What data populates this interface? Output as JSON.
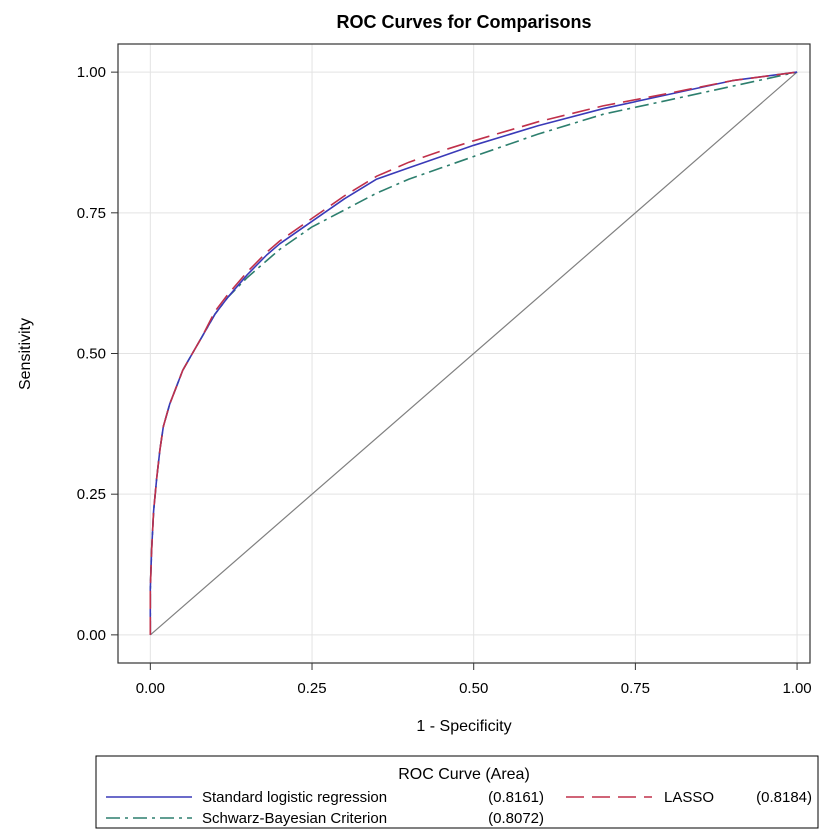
{
  "chart_data": {
    "type": "line",
    "title": "ROC Curves for Comparisons",
    "xlabel": "1 - Specificity",
    "ylabel": "Sensitivity",
    "xlim": [
      -0.05,
      1.02
    ],
    "ylim": [
      -0.05,
      1.05
    ],
    "xticks": [
      "0.00",
      "0.25",
      "0.50",
      "0.75",
      "1.00"
    ],
    "yticks": [
      "0.00",
      "0.25",
      "0.50",
      "0.75",
      "1.00"
    ],
    "grid": true,
    "legend": {
      "title": "ROC Curve (Area)",
      "placement": "bottom",
      "entries": [
        {
          "label": "Standard logistic regression",
          "area": "(0.8161)"
        },
        {
          "label": "LASSO",
          "area": "(0.8184)"
        },
        {
          "label": "Schwarz-Bayesian Criterion",
          "area": "(0.8072)"
        }
      ]
    },
    "series": [
      {
        "name": "Standard logistic regression",
        "color": "#3a3ab8",
        "dash": "solid",
        "x": [
          0,
          0,
          0.002,
          0.005,
          0.01,
          0.015,
          0.02,
          0.03,
          0.04,
          0.05,
          0.06,
          0.07,
          0.08,
          0.1,
          0.12,
          0.15,
          0.18,
          0.2,
          0.25,
          0.3,
          0.35,
          0.4,
          0.45,
          0.5,
          0.6,
          0.7,
          0.8,
          0.9,
          1.0
        ],
        "y": [
          0,
          0.08,
          0.15,
          0.22,
          0.28,
          0.33,
          0.37,
          0.41,
          0.44,
          0.47,
          0.49,
          0.51,
          0.53,
          0.57,
          0.6,
          0.64,
          0.675,
          0.695,
          0.735,
          0.775,
          0.81,
          0.83,
          0.85,
          0.87,
          0.905,
          0.935,
          0.96,
          0.985,
          1.0
        ]
      },
      {
        "name": "LASSO",
        "color": "#c0304a",
        "dash": "long-dash",
        "x": [
          0,
          0,
          0.002,
          0.005,
          0.01,
          0.015,
          0.02,
          0.03,
          0.04,
          0.05,
          0.06,
          0.07,
          0.08,
          0.1,
          0.12,
          0.15,
          0.18,
          0.2,
          0.25,
          0.3,
          0.35,
          0.4,
          0.45,
          0.5,
          0.6,
          0.7,
          0.8,
          0.9,
          1.0
        ],
        "y": [
          0,
          0.08,
          0.15,
          0.22,
          0.28,
          0.33,
          0.37,
          0.41,
          0.44,
          0.47,
          0.49,
          0.51,
          0.53,
          0.575,
          0.605,
          0.645,
          0.68,
          0.7,
          0.74,
          0.78,
          0.815,
          0.84,
          0.86,
          0.878,
          0.912,
          0.94,
          0.962,
          0.985,
          1.0
        ]
      },
      {
        "name": "Schwarz-Bayesian Criterion",
        "color": "#2d7f6e",
        "dash": "dash-dot",
        "x": [
          0,
          0,
          0.002,
          0.005,
          0.01,
          0.015,
          0.02,
          0.03,
          0.04,
          0.05,
          0.06,
          0.07,
          0.08,
          0.1,
          0.12,
          0.15,
          0.18,
          0.2,
          0.25,
          0.3,
          0.35,
          0.4,
          0.45,
          0.5,
          0.6,
          0.7,
          0.8,
          0.9,
          1.0
        ],
        "y": [
          0,
          0.08,
          0.15,
          0.22,
          0.28,
          0.33,
          0.37,
          0.41,
          0.44,
          0.47,
          0.49,
          0.51,
          0.53,
          0.57,
          0.6,
          0.635,
          0.665,
          0.685,
          0.725,
          0.755,
          0.785,
          0.81,
          0.83,
          0.85,
          0.89,
          0.925,
          0.95,
          0.975,
          1.0
        ]
      },
      {
        "name": "",
        "color": "#808080",
        "dash": "solid",
        "x": [
          0,
          1
        ],
        "y": [
          0,
          1
        ]
      }
    ]
  }
}
